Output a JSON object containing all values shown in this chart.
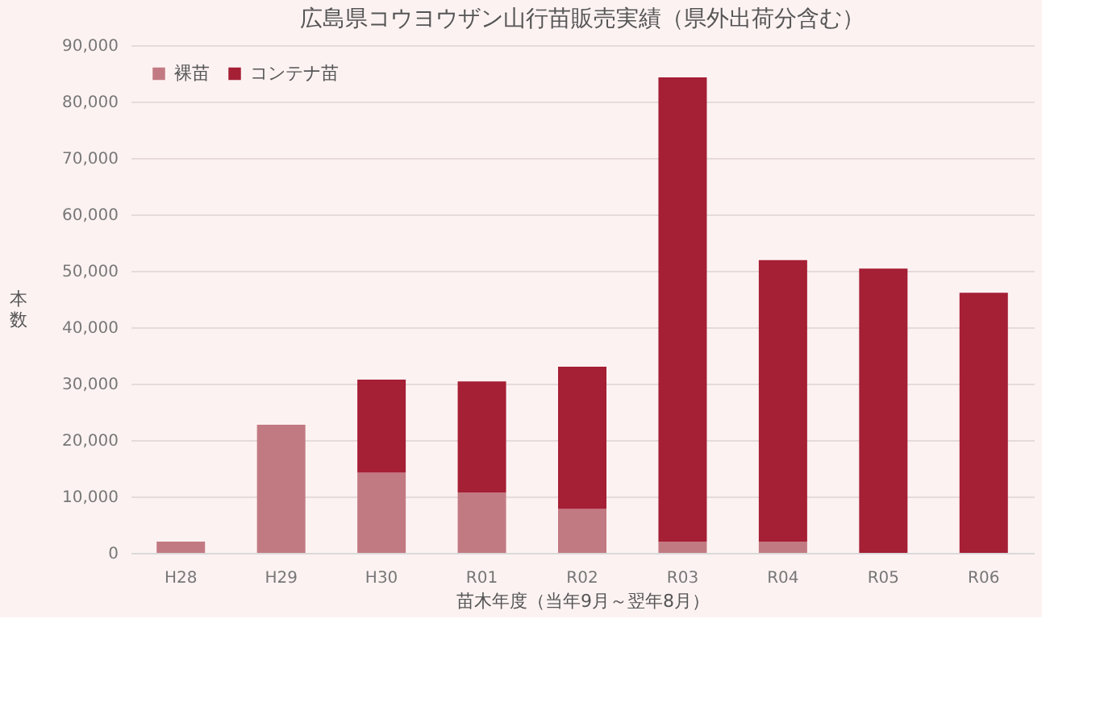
{
  "chart_data": {
    "type": "bar",
    "title": "広島県コウヨウザン山行苗販売実績（県外出荷分含む）",
    "xlabel": "苗木年度（当年9月～翌年8月）",
    "ylabel": "本数",
    "categories": [
      "H28",
      "H29",
      "H30",
      "R01",
      "R02",
      "R03",
      "R04",
      "R05",
      "R06"
    ],
    "stacked": true,
    "series": [
      {
        "name": "裸苗",
        "color": "#c27a82",
        "values": [
          2000,
          22700,
          14200,
          10700,
          7800,
          2000,
          2000,
          0,
          0
        ]
      },
      {
        "name": "コンテナ苗",
        "color": "#a51f35",
        "values": [
          0,
          0,
          16500,
          19700,
          25200,
          82300,
          49900,
          50400,
          46100
        ]
      }
    ],
    "ylim": [
      0,
      90000
    ],
    "yticks": [
      {
        "value": 0,
        "label": "0"
      },
      {
        "value": 10000,
        "label": "10,000"
      },
      {
        "value": 20000,
        "label": "20,000"
      },
      {
        "value": 30000,
        "label": "30,000"
      },
      {
        "value": 40000,
        "label": "40,000"
      },
      {
        "value": 50000,
        "label": "50,000"
      },
      {
        "value": 60000,
        "label": "60,000"
      },
      {
        "value": 70000,
        "label": "70,000"
      },
      {
        "value": 80000,
        "label": "80,000"
      },
      {
        "value": 90000,
        "label": "90,000"
      }
    ],
    "grid": "y",
    "legend": "top left"
  }
}
